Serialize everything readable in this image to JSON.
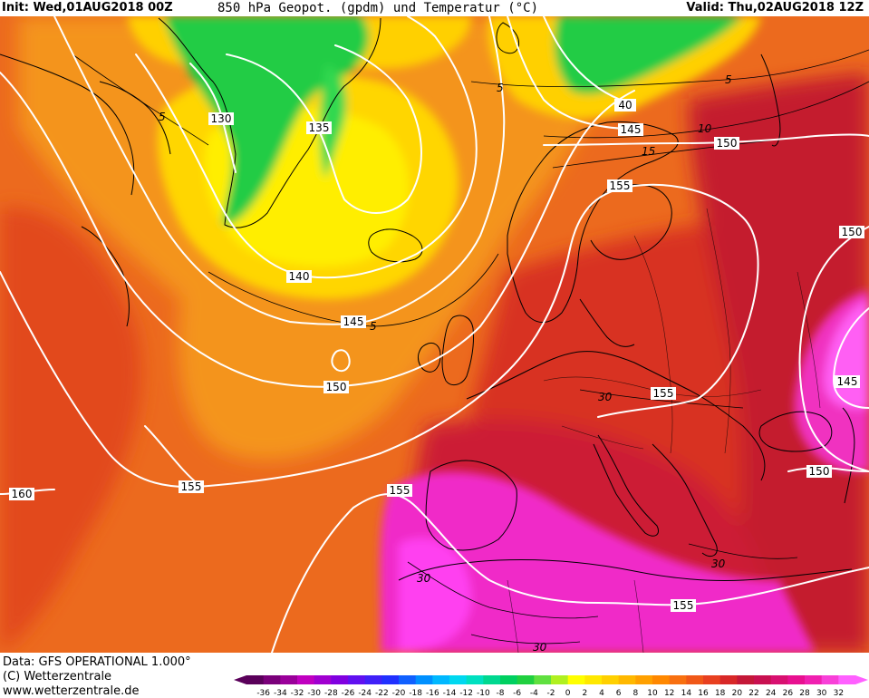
{
  "header": {
    "init": "Init: Wed,01AUG2018 00Z",
    "title": "850 hPa Geopot. (gpdm) und Temperatur (°C)",
    "valid": "Valid: Thu,02AUG2018 12Z"
  },
  "footer": {
    "data_source": "Data: GFS OPERATIONAL 1.000°",
    "copyright": "(C) Wetterzentrale",
    "website": "www.wetterzentrale.de"
  },
  "geopotential_labels": [
    "130",
    "135",
    "140",
    "145",
    "150",
    "155",
    "160",
    "40",
    "145",
    "150",
    "155",
    "150",
    "145",
    "150",
    "155",
    "155",
    "155",
    "150",
    "155"
  ],
  "temperature_labels": [
    "5",
    "5",
    "5",
    "10",
    "15",
    "5",
    "30",
    "30",
    "30",
    "30"
  ],
  "legend": {
    "ticks": [
      "-36",
      "-34",
      "-32",
      "-30",
      "-28",
      "-26",
      "-24",
      "-22",
      "-20",
      "-18",
      "-16",
      "-14",
      "-12",
      "-10",
      "-8",
      "-6",
      "-4",
      "-2",
      "0",
      "2",
      "4",
      "6",
      "8",
      "10",
      "12",
      "14",
      "16",
      "18",
      "20",
      "22",
      "24",
      "26",
      "28",
      "30",
      "32"
    ],
    "colors": [
      "#5a005a",
      "#7a007a",
      "#9a009a",
      "#c000c0",
      "#a000d0",
      "#8000e0",
      "#6010f0",
      "#4020f8",
      "#2030ff",
      "#1060ff",
      "#0090ff",
      "#00b8ff",
      "#00d8f0",
      "#00e0c0",
      "#00d890",
      "#00d060",
      "#20d040",
      "#60e040",
      "#b0f020",
      "#ffff00",
      "#ffe800",
      "#ffd000",
      "#ffb800",
      "#ffa000",
      "#ff8800",
      "#f87010",
      "#f05818",
      "#e84020",
      "#d82828",
      "#c41838",
      "#c81050",
      "#d81070",
      "#e81090",
      "#f020b0",
      "#f840d8",
      "#ff60ff"
    ]
  },
  "colors": {
    "warm_orange": "#f0781e",
    "dark_red": "#c81e28",
    "magenta": "#f028c8",
    "yellow": "#ffe800",
    "green": "#22cc44",
    "contour_white": "#ffffff",
    "coast_black": "#000000"
  }
}
